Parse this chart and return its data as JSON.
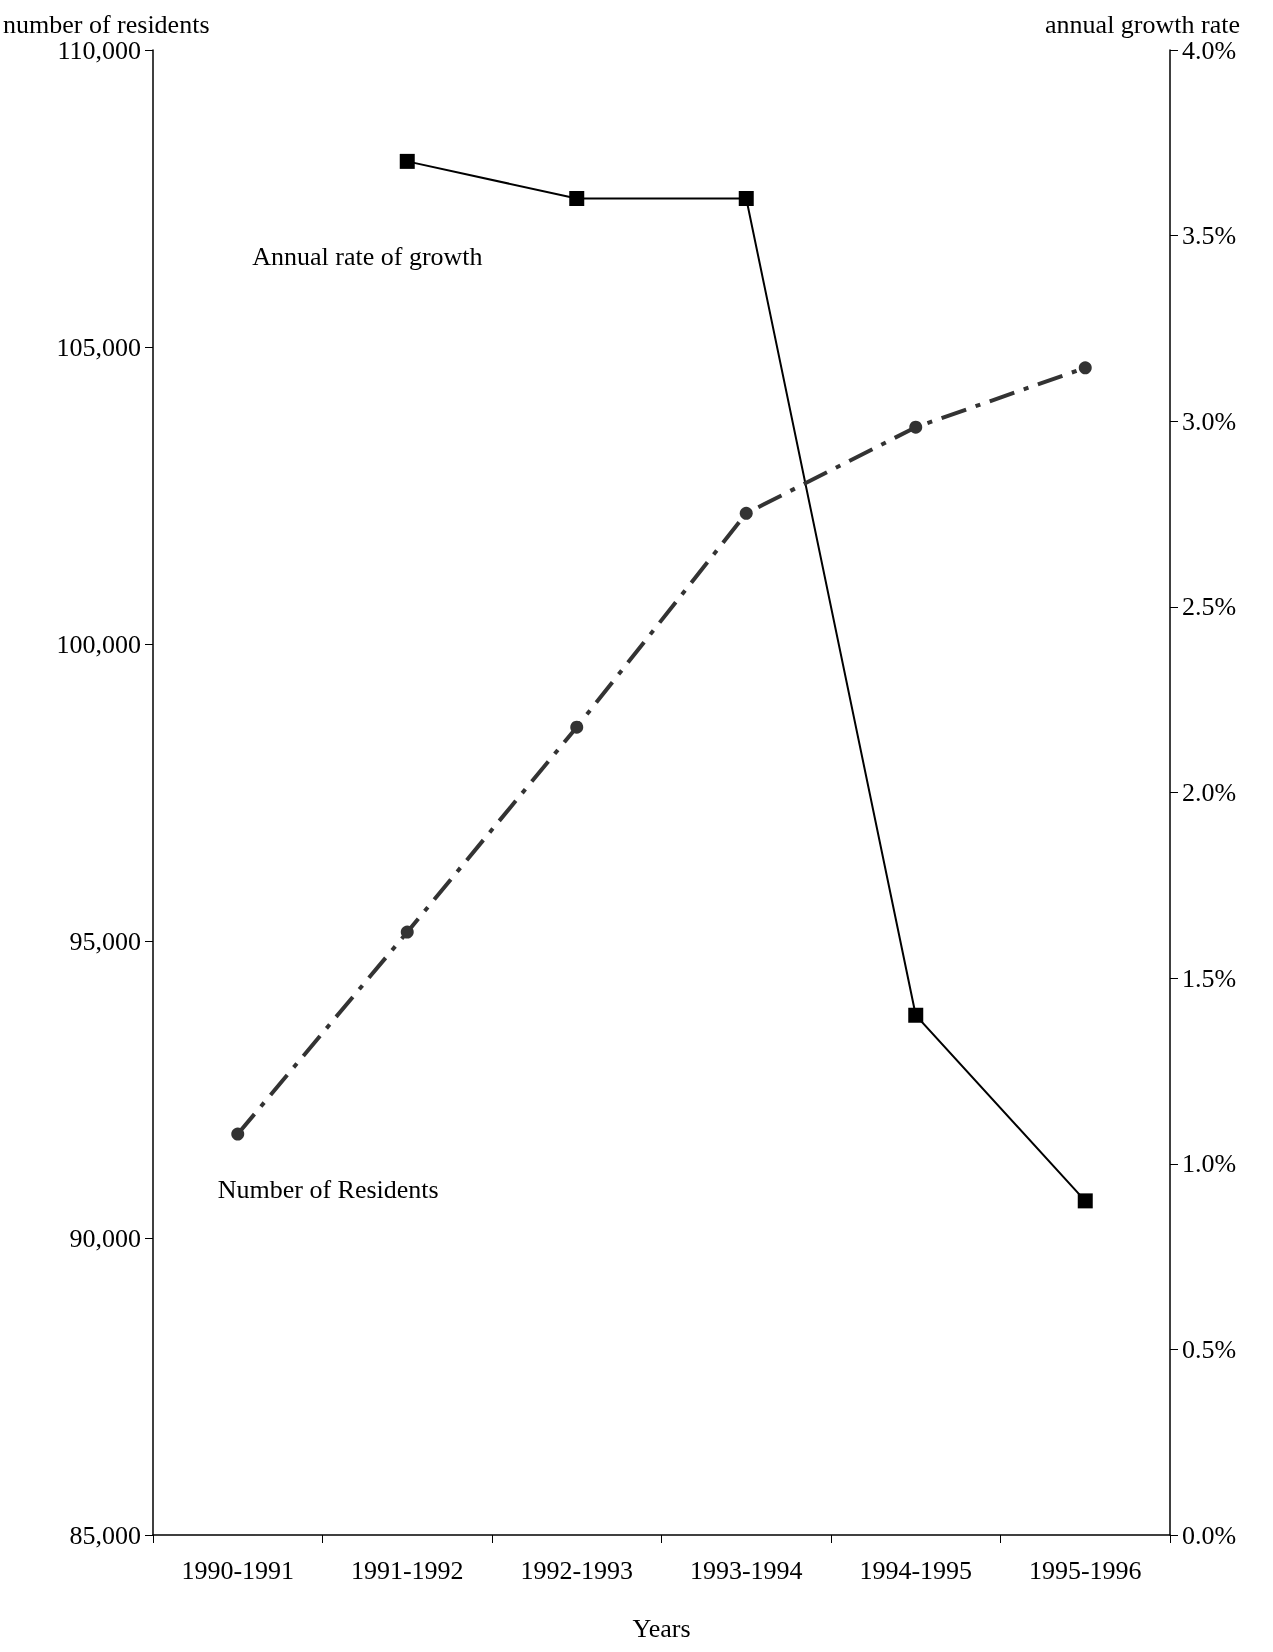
{
  "chart_data": {
    "type": "line",
    "xlabel": "Years",
    "ylabel": "number of residents",
    "y2label": "annual growth rate",
    "categories": [
      "1990-1991",
      "1991-1992",
      "1992-1993",
      "1993-1994",
      "1994-1995",
      "1995-1996"
    ],
    "series": [
      {
        "name": "Annual rate of growth",
        "color": "#000000",
        "axis": "y2",
        "marker": "square",
        "line_style": "solid",
        "values": [
          null,
          3.7,
          3.6,
          3.6,
          1.4,
          0.9
        ]
      },
      {
        "name": "Number of Residents",
        "color": "#333333",
        "marker": "circle",
        "line_style": "dashed",
        "values": [
          91750,
          95150,
          98600,
          102200,
          103650,
          104650
        ]
      }
    ],
    "ylim": [
      85000,
      110000
    ],
    "yticks": [
      {
        "value": 85000,
        "label": "85,000"
      },
      {
        "value": 90000,
        "label": "90,000"
      },
      {
        "value": 95000,
        "label": "95,000"
      },
      {
        "value": 100000,
        "label": "100,000"
      },
      {
        "value": 105000,
        "label": "105,000"
      },
      {
        "value": 110000,
        "label": "110,000"
      }
    ],
    "y2lim": [
      0,
      4
    ],
    "y2ticks": [
      {
        "value": 0,
        "label": "0.0%"
      },
      {
        "value": 0.5,
        "label": "0.5%"
      },
      {
        "value": 1,
        "label": "1.0%"
      },
      {
        "value": 1.5,
        "label": "1.5%"
      },
      {
        "value": 2,
        "label": "2.0%"
      },
      {
        "value": 2.5,
        "label": "2.5%"
      },
      {
        "value": 3,
        "label": "3.0%"
      },
      {
        "value": 3.5,
        "label": "3.5%"
      },
      {
        "value": 4,
        "label": "4.0%"
      }
    ],
    "grid": false,
    "legend": false
  }
}
